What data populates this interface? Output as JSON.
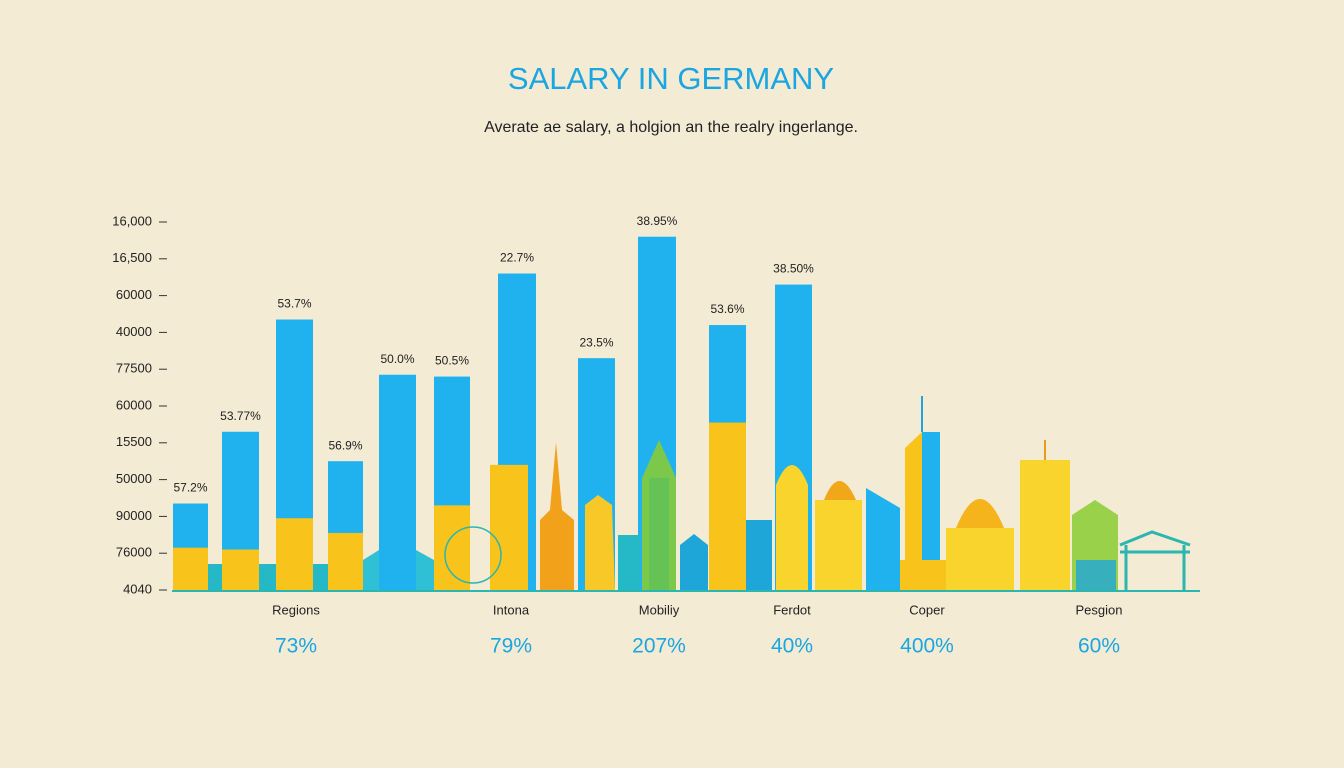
{
  "chart_data": {
    "type": "bar",
    "title": "SALARY IN GERMANY",
    "subtitle": "Averate ae salary, a holgion an the realry ingerlange.",
    "ylim": [
      0,
      10
    ],
    "yticks": [
      {
        "value": 0,
        "label": "4040"
      },
      {
        "value": 1,
        "label": "76000"
      },
      {
        "value": 2,
        "label": "90000"
      },
      {
        "value": 3,
        "label": "50000"
      },
      {
        "value": 4,
        "label": "15500"
      },
      {
        "value": 5,
        "label": "60000"
      },
      {
        "value": 6,
        "label": "77500"
      },
      {
        "value": 7,
        "label": "40000"
      },
      {
        "value": 8,
        "label": "60000"
      },
      {
        "value": 9,
        "label": "16,500"
      },
      {
        "value": 10,
        "label": "16,000"
      }
    ],
    "series": [
      {
        "color": "#1fb2ee",
        "values": [
          2.35,
          4.3,
          7.35,
          3.5,
          5.85,
          5.8,
          8.6,
          6.3,
          9.6,
          7.2,
          8.3
        ]
      },
      {
        "color": "#f8c41c",
        "values": [
          1.15,
          1.1,
          1.95,
          1.55,
          null,
          2.3,
          3.4,
          null,
          null,
          4.55,
          null
        ]
      }
    ],
    "bar_labels": [
      "57.2%",
      "53.77%",
      "53.7%",
      "56.9%",
      "50.0%",
      "50.5%",
      "22.7%",
      "23.5%",
      "38.95%",
      "53.6%",
      "38.50%"
    ],
    "groups": [
      {
        "label": "Regions",
        "value_label": "73%"
      },
      {
        "label": "Intona",
        "value_label": "79%"
      },
      {
        "label": "Mobiliy",
        "value_label": "207%"
      },
      {
        "label": "Ferdot",
        "value_label": "40%"
      },
      {
        "label": "Coper",
        "value_label": "400%"
      },
      {
        "label": "Pesgion",
        "value_label": "60%"
      }
    ]
  }
}
